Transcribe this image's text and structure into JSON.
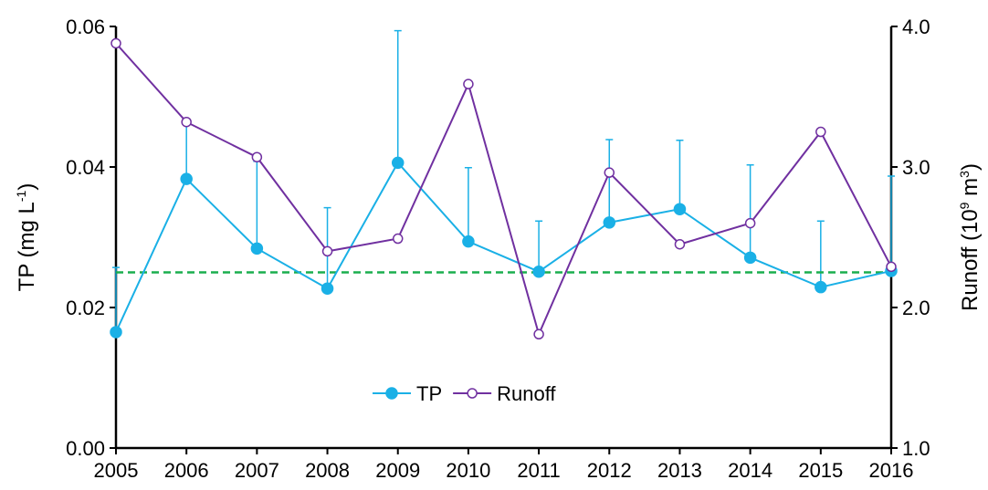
{
  "chart_data": {
    "type": "line",
    "categories": [
      "2005",
      "2006",
      "2007",
      "2008",
      "2009",
      "2010",
      "2011",
      "2012",
      "2013",
      "2014",
      "2015",
      "2016"
    ],
    "ylabel": [
      "TP (mg L",
      "-1",
      ")"
    ],
    "y2label": [
      "Runoff (10",
      "9",
      " m",
      "3",
      ")"
    ],
    "ylim": [
      0,
      0.06
    ],
    "yticks": [
      {
        "value": 0,
        "label": "0.00"
      },
      0.02,
      0.04,
      0.06
    ],
    "y2lim": [
      1,
      4
    ],
    "y2ticks": [
      {
        "value": 1,
        "label": "1.0"
      },
      {
        "value": 2,
        "label": "2.0"
      },
      {
        "value": 3,
        "label": "3.0"
      },
      {
        "value": 4,
        "label": "4.0"
      }
    ],
    "series": [
      {
        "name": "TP",
        "color": "#1ab0e6",
        "filled": true,
        "values": [
          0.0165,
          0.0383,
          0.0284,
          0.0227,
          0.0406,
          0.0294,
          0.0251,
          0.0321,
          0.034,
          0.0271,
          0.0229,
          0.0252
        ],
        "errors": [
          0.0092,
          0.0082,
          0.0124,
          0.0115,
          0.0188,
          0.0105,
          0.0072,
          0.0118,
          0.0098,
          0.0132,
          0.0094,
          0.0135
        ]
      },
      {
        "name": "Runoff",
        "color": "#7030a0",
        "filled": false,
        "axis": "y2",
        "values": [
          3.88,
          3.32,
          3.07,
          2.4,
          2.49,
          3.59,
          1.81,
          2.96,
          2.45,
          2.6,
          3.25,
          2.29
        ]
      }
    ],
    "hline": {
      "value": 0.025,
      "color": "#1aae4e"
    }
  }
}
